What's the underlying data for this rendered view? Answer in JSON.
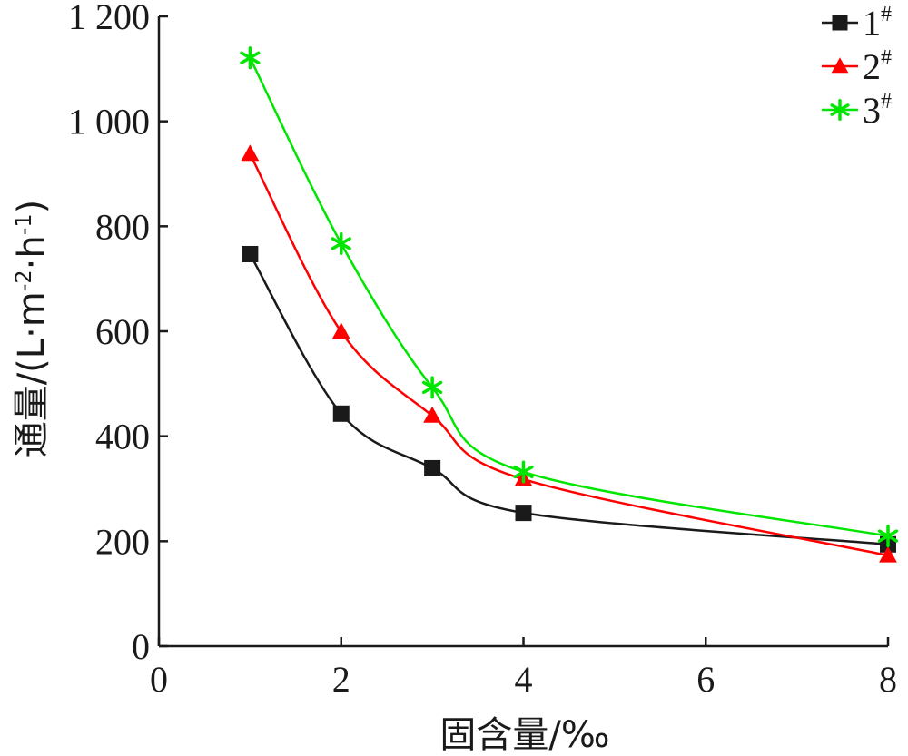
{
  "chart_data": {
    "type": "line",
    "title": "",
    "xlabel": "固含量/‰",
    "ylabel_main": "通量/(L·m",
    "ylabel_sup1": "-2",
    "ylabel_mid": "·h",
    "ylabel_sup2": "-1",
    "ylabel_end": ")",
    "xlim": [
      0,
      8
    ],
    "ylim": [
      0,
      1200
    ],
    "xticks": [
      {
        "value": 0,
        "label": "0"
      },
      {
        "value": 2,
        "label": "2"
      },
      {
        "value": 4,
        "label": "4"
      },
      {
        "value": 6,
        "label": "6"
      },
      {
        "value": 8,
        "label": "8"
      }
    ],
    "yticks": [
      {
        "value": 0,
        "label": "0"
      },
      {
        "value": 200,
        "label": "200"
      },
      {
        "value": 400,
        "label": "400"
      },
      {
        "value": 600,
        "label": "600"
      },
      {
        "value": 800,
        "label": "800"
      },
      {
        "value": 1000,
        "label": "1 000"
      },
      {
        "value": 1200,
        "label": "1 200"
      }
    ],
    "grid": false,
    "legend_position": "top-right",
    "x": [
      1,
      2,
      3,
      4,
      8
    ],
    "series": [
      {
        "name": "1",
        "name_sup": "#",
        "marker": "square",
        "color": "#1a1a1a",
        "values": [
          747,
          443,
          339,
          254,
          194
        ]
      },
      {
        "name": "2",
        "name_sup": "#",
        "marker": "triangle",
        "color": "#ff0000",
        "values": [
          938,
          599,
          439,
          318,
          173
        ]
      },
      {
        "name": "3",
        "name_sup": "#",
        "marker": "asterisk",
        "color": "#00e600",
        "values": [
          1121,
          767,
          493,
          332,
          210
        ]
      }
    ]
  }
}
